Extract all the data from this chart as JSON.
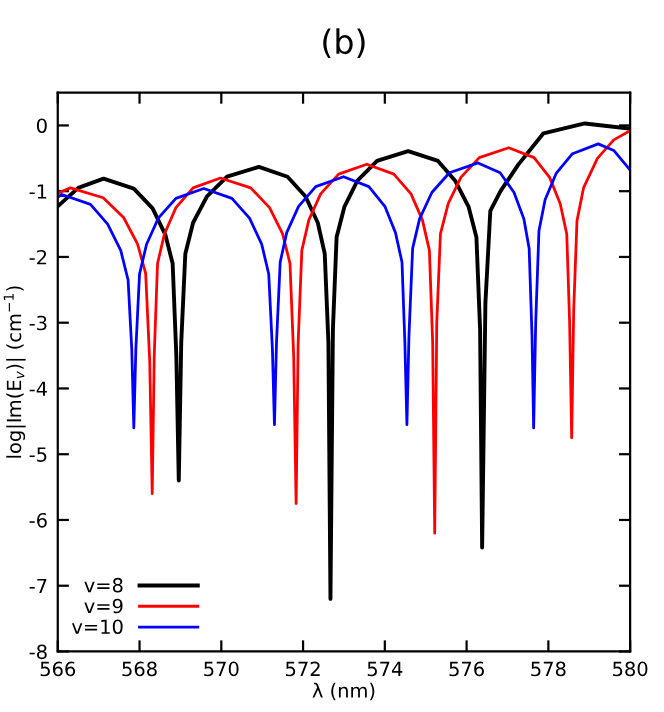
{
  "chart_data": {
    "type": "line",
    "title": "(b)",
    "xlabel": "λ (nm)",
    "ylabel": "log|Im(E$_{v}$)| (cm$^{−1}$)",
    "xlim": [
      566,
      580
    ],
    "xticks": [
      566,
      568,
      570,
      572,
      574,
      576,
      578,
      580
    ],
    "ylim": [
      -8,
      0.5
    ],
    "yticks": [
      -8,
      -7,
      -6,
      -5,
      -4,
      -3,
      -2,
      -1,
      0
    ],
    "grid": false,
    "legend": "bottom left",
    "marker": "none",
    "line_style": "solid",
    "series": [
      {
        "name": "v=8",
        "color": "#000000",
        "x": [
          566,
          566.5,
          567.12,
          567.86,
          568.32,
          568.63,
          568.81,
          568.9,
          568.96,
          569.02,
          569.12,
          569.31,
          569.65,
          570.14,
          570.92,
          571.62,
          572.06,
          572.36,
          572.53,
          572.62,
          572.67,
          572.73,
          572.82,
          573.01,
          573.33,
          573.81,
          574.57,
          575.3,
          575.72,
          576.05,
          576.24,
          576.33,
          576.38,
          576.46,
          576.58,
          576.83,
          577.26,
          577.88,
          578.89,
          580
        ],
        "values": [
          -1.23,
          -0.95,
          -0.81,
          -0.96,
          -1.26,
          -1.66,
          -2.1,
          -3.5,
          -5.4,
          -3.3,
          -1.95,
          -1.48,
          -1.08,
          -0.78,
          -0.63,
          -0.78,
          -1.08,
          -1.48,
          -1.95,
          -3.3,
          -7.2,
          -3.1,
          -1.7,
          -1.24,
          -0.84,
          -0.54,
          -0.39,
          -0.54,
          -0.84,
          -1.24,
          -1.7,
          -3.1,
          -6.42,
          -2.7,
          -1.3,
          -1.0,
          -0.6,
          -0.12,
          0.03,
          -0.05
        ]
      },
      {
        "name": "v=9",
        "color": "#ff0000",
        "x": [
          566,
          566.31,
          567.11,
          567.61,
          567.95,
          568.15,
          568.25,
          568.31,
          568.36,
          568.44,
          568.61,
          568.89,
          569.31,
          569.98,
          570.72,
          571.18,
          571.5,
          571.68,
          571.77,
          571.83,
          571.88,
          571.97,
          572.14,
          572.43,
          572.87,
          573.56,
          574.22,
          574.64,
          574.92,
          575.09,
          575.17,
          575.22,
          575.27,
          575.36,
          575.55,
          575.86,
          576.31,
          577.03,
          577.65,
          578.03,
          578.29,
          578.45,
          578.52,
          578.57,
          578.62,
          578.7,
          578.86,
          579.2,
          579.6,
          580
        ],
        "values": [
          -1.03,
          -0.95,
          -1.1,
          -1.4,
          -1.8,
          -2.25,
          -3.6,
          -5.6,
          -3.5,
          -2.1,
          -1.65,
          -1.25,
          -0.95,
          -0.8,
          -0.95,
          -1.25,
          -1.65,
          -2.1,
          -3.5,
          -5.75,
          -3.3,
          -1.9,
          -1.44,
          -1.04,
          -0.74,
          -0.59,
          -0.74,
          -1.04,
          -1.44,
          -1.9,
          -3.3,
          -6.2,
          -3.0,
          -1.65,
          -1.19,
          -0.79,
          -0.49,
          -0.34,
          -0.49,
          -0.79,
          -1.19,
          -1.65,
          -3.0,
          -4.75,
          -2.8,
          -1.45,
          -0.95,
          -0.5,
          -0.22,
          -0.08
        ]
      },
      {
        "name": "v=10",
        "color": "#0000ff",
        "x": [
          566,
          566.1,
          566.8,
          567.22,
          567.54,
          567.72,
          567.81,
          567.86,
          567.91,
          568.0,
          568.17,
          568.46,
          568.89,
          569.57,
          570.26,
          570.69,
          570.99,
          571.16,
          571.25,
          571.3,
          571.35,
          571.44,
          571.6,
          571.89,
          572.31,
          572.99,
          573.61,
          574.0,
          574.26,
          574.42,
          574.49,
          574.54,
          574.59,
          574.68,
          574.85,
          575.15,
          575.58,
          576.28,
          576.82,
          577.16,
          577.4,
          577.53,
          577.6,
          577.64,
          577.69,
          577.77,
          577.92,
          578.19,
          578.59,
          579.22,
          579.6,
          580
        ],
        "values": [
          -1.09,
          -1.05,
          -1.2,
          -1.5,
          -1.9,
          -2.35,
          -3.4,
          -4.6,
          -3.4,
          -2.26,
          -1.81,
          -1.41,
          -1.11,
          -0.96,
          -1.11,
          -1.41,
          -1.81,
          -2.26,
          -3.4,
          -4.55,
          -3.3,
          -2.08,
          -1.63,
          -1.23,
          -0.93,
          -0.78,
          -0.93,
          -1.23,
          -1.63,
          -2.08,
          -3.3,
          -4.55,
          -3.2,
          -1.87,
          -1.42,
          -1.02,
          -0.72,
          -0.57,
          -0.72,
          -1.02,
          -1.42,
          -1.87,
          -3.2,
          -4.6,
          -3.0,
          -1.6,
          -1.13,
          -0.73,
          -0.43,
          -0.28,
          -0.38,
          -0.68
        ]
      }
    ]
  }
}
